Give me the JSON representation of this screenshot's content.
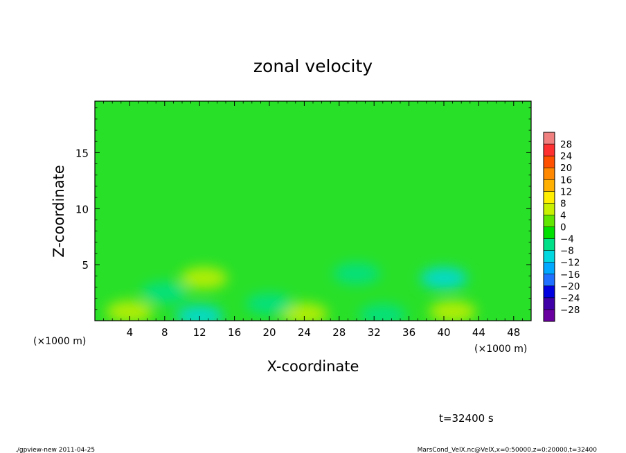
{
  "chart_data": {
    "type": "heatmap",
    "title": "zonal velocity",
    "xlabel": "X-coordinate",
    "ylabel": "Z-coordinate",
    "x_unit_left": "(×1000 m)",
    "x_unit_right": "(×1000 m)",
    "xlim": [
      0,
      50
    ],
    "ylim": [
      0,
      19.6
    ],
    "xticks": [
      4,
      8,
      12,
      16,
      20,
      24,
      28,
      32,
      36,
      40,
      44,
      48
    ],
    "xtick_labels": [
      "4",
      "8",
      "12",
      "16",
      "20",
      "24",
      "28",
      "32",
      "36",
      "40",
      "44",
      "48"
    ],
    "yticks": [
      5,
      10,
      15
    ],
    "ytick_labels": [
      "5",
      "10",
      "15"
    ],
    "colorbar": {
      "levels": [
        28,
        24,
        20,
        16,
        12,
        8,
        4,
        0,
        -4,
        -8,
        -12,
        -16,
        -20,
        -24,
        -28
      ],
      "labels": [
        "28",
        "24",
        "20",
        "16",
        "12",
        "8",
        "4",
        "0",
        "−4",
        "−8",
        "−12",
        "−16",
        "−20",
        "−24",
        "−28"
      ],
      "colors": [
        "#f08080",
        "#ff3030",
        "#ff5000",
        "#ff8800",
        "#ffb000",
        "#ffee00",
        "#c8f000",
        "#60e600",
        "#00e000",
        "#00e088",
        "#00d8e0",
        "#00a8ff",
        "#2070ff",
        "#0000e0",
        "#4000a8",
        "#6a00a0"
      ]
    },
    "field_background": "#28e028",
    "features": [
      {
        "x": 12.5,
        "z": 3.8,
        "value": 6
      },
      {
        "x": 24,
        "z": 0.6,
        "value": 6
      },
      {
        "x": 41,
        "z": 0.8,
        "value": 5
      },
      {
        "x": 4,
        "z": 0.8,
        "value": 5
      },
      {
        "x": 12,
        "z": 0.4,
        "value": -8
      },
      {
        "x": 33,
        "z": 0.5,
        "value": -7
      },
      {
        "x": 40,
        "z": 3.8,
        "value": -9
      },
      {
        "x": 30,
        "z": 4.2,
        "value": -5
      },
      {
        "x": 8,
        "z": 2.5,
        "value": -5
      },
      {
        "x": 20,
        "z": 1.5,
        "value": -5
      }
    ],
    "time_label": "t=32400 s"
  },
  "footer": {
    "left": "./gpview-new   2011-04-25",
    "right": "MarsCond_VelX.nc@VelX,x=0:50000,z=0:20000,t=32400"
  }
}
